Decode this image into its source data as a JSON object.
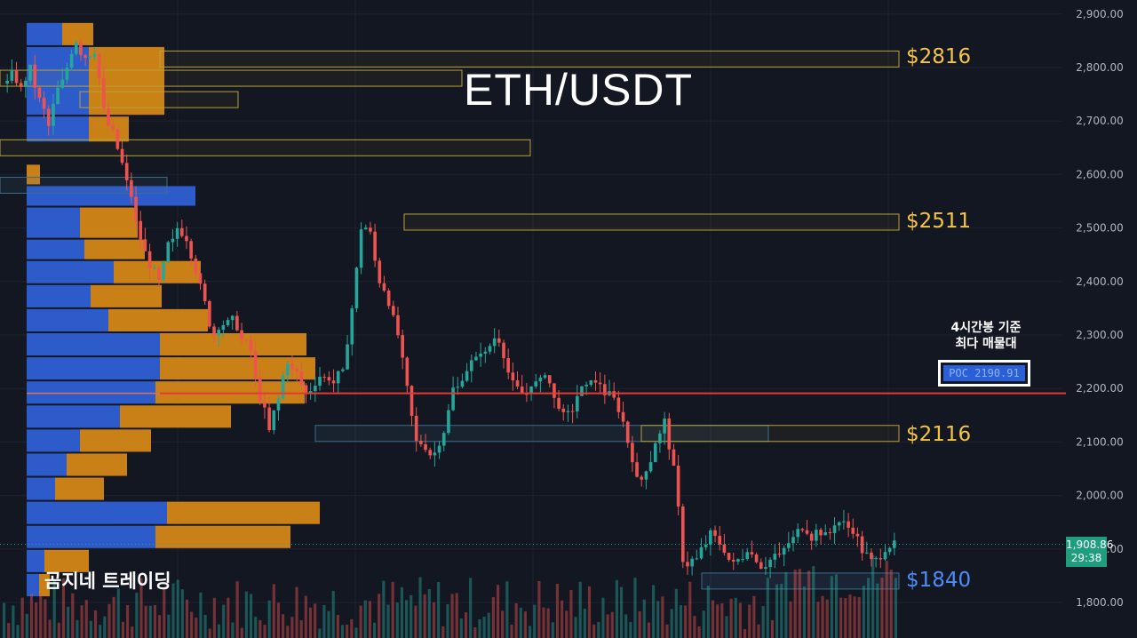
{
  "chart_data": {
    "type": "candlestick",
    "title": "ETH/USDT",
    "y_axis": {
      "ticks": [
        "2,900.00",
        "2,800.00",
        "2,700.00",
        "2,600.00",
        "2,500.00",
        "2,400.00",
        "2,300.00",
        "2,200.00",
        "2,100.00",
        "2,000.00",
        "1,900.00",
        "1,800.00"
      ],
      "range": [
        1780,
        2920
      ]
    },
    "levels": [
      {
        "price": 2816,
        "label": "$2816",
        "color": "#f5c542"
      },
      {
        "price": 2511,
        "label": "$2511",
        "color": "#f5c542"
      },
      {
        "price": 2116,
        "label": "$2116",
        "color": "#f5c542"
      },
      {
        "price": 1840,
        "label": "$1840",
        "color": "#4c8dfa"
      }
    ],
    "poc": {
      "price": 2190.91,
      "label": "POC  2190.91",
      "note_line1": "4시간봉 기준",
      "note_line2": "최다 매물대",
      "line_color": "#e53935"
    },
    "last_price": {
      "value": "1,908.86",
      "countdown": "29:38",
      "color": "#1f9e7d"
    },
    "price_path": [
      2770,
      2790,
      2760,
      2800,
      2740,
      2690,
      2760,
      2800,
      2850,
      2820,
      2830,
      2720,
      2680,
      2620,
      2560,
      2480,
      2430,
      2400,
      2470,
      2500,
      2480,
      2420,
      2360,
      2300,
      2320,
      2330,
      2290,
      2270,
      2180,
      2120,
      2180,
      2250,
      2230,
      2190,
      2210,
      2220,
      2210,
      2230,
      2350,
      2500,
      2490,
      2400,
      2360,
      2300,
      2200,
      2100,
      2090,
      2080,
      2120,
      2200,
      2220,
      2250,
      2270,
      2280,
      2290,
      2230,
      2200,
      2190,
      2210,
      2230,
      2180,
      2150,
      2160,
      2200,
      2220,
      2210,
      2190,
      2160,
      2100,
      2030,
      2050,
      2100,
      2140,
      2050,
      1880,
      1880,
      1900,
      1930,
      1910,
      1880,
      1880,
      1900,
      1880,
      1870,
      1890,
      1900,
      1920,
      1940,
      1920,
      1930,
      1930,
      1950,
      1940,
      1920,
      1890,
      1880,
      1900,
      1910
    ],
    "volume_profile": [
      {
        "price_low": 2840,
        "price_high": 2885,
        "buy": 40,
        "sell": 35
      },
      {
        "price_low": 2710,
        "price_high": 2840,
        "buy": 70,
        "sell": 85
      },
      {
        "price_low": 2660,
        "price_high": 2710,
        "buy": 70,
        "sell": 45
      },
      {
        "price_low": 2580,
        "price_high": 2620,
        "buy": 0,
        "sell": 15
      },
      {
        "price_low": 2540,
        "price_high": 2580,
        "buy": 190,
        "sell": 0
      },
      {
        "price_low": 2480,
        "price_high": 2540,
        "buy": 60,
        "sell": 65
      },
      {
        "price_low": 2440,
        "price_high": 2480,
        "buy": 65,
        "sell": 68
      },
      {
        "price_low": 2395,
        "price_high": 2440,
        "buy": 98,
        "sell": 98
      },
      {
        "price_low": 2350,
        "price_high": 2395,
        "buy": 72,
        "sell": 80
      },
      {
        "price_low": 2305,
        "price_high": 2350,
        "buy": 92,
        "sell": 112
      },
      {
        "price_low": 2260,
        "price_high": 2305,
        "buy": 150,
        "sell": 165
      },
      {
        "price_low": 2215,
        "price_high": 2260,
        "buy": 150,
        "sell": 175
      },
      {
        "price_low": 2170,
        "price_high": 2215,
        "buy": 145,
        "sell": 168
      },
      {
        "price_low": 2125,
        "price_high": 2170,
        "buy": 105,
        "sell": 125
      },
      {
        "price_low": 2080,
        "price_high": 2125,
        "buy": 60,
        "sell": 80
      },
      {
        "price_low": 2035,
        "price_high": 2080,
        "buy": 45,
        "sell": 68
      },
      {
        "price_low": 1990,
        "price_high": 2035,
        "buy": 32,
        "sell": 55
      },
      {
        "price_low": 1945,
        "price_high": 1990,
        "buy": 158,
        "sell": 172
      },
      {
        "price_low": 1900,
        "price_high": 1945,
        "buy": 145,
        "sell": 152
      },
      {
        "price_low": 1855,
        "price_high": 1900,
        "buy": 20,
        "sell": 50
      },
      {
        "price_low": 1810,
        "price_high": 1855,
        "buy": 14,
        "sell": 12
      }
    ]
  },
  "watermark": "곰지네 트레이딩",
  "colors": {
    "background": "#131722",
    "up": "#26a69a",
    "down": "#ef5350",
    "profile_buy": "#2e5fd4",
    "profile_sell": "#d98a16"
  }
}
